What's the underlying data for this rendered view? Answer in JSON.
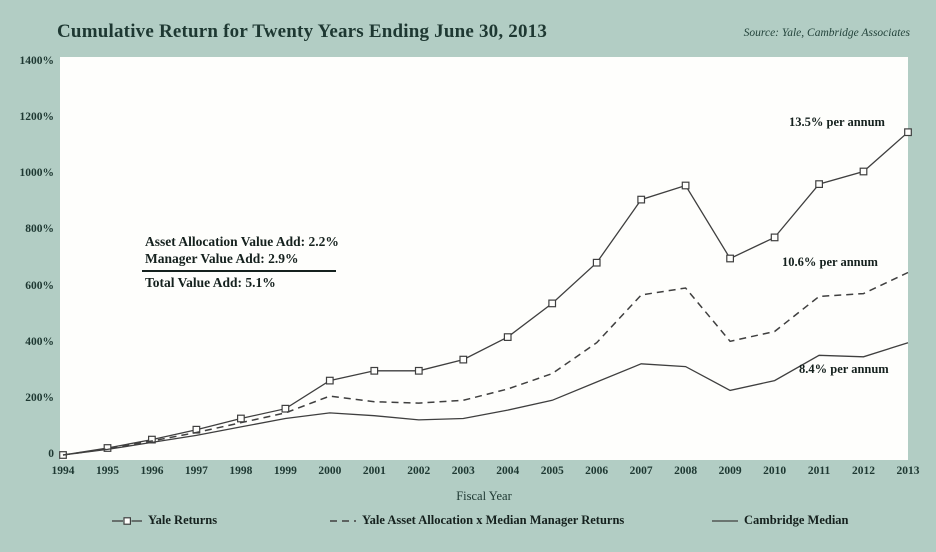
{
  "title": "Cumulative Return for Twenty Years Ending June 30, 2013",
  "source": "Source: Yale, Cambridge Associates",
  "annotation": {
    "line1": "Asset Allocation Value Add: 2.2%",
    "line2": "Manager Value Add: 2.9%",
    "line3": "Total Value Add: 5.1%"
  },
  "colors": {
    "background": "#b2cdc4",
    "plot_background": "#fefefc",
    "line": "#3f3f3f",
    "text": "#1e3832"
  },
  "chart_data": {
    "type": "line",
    "title": "Cumulative Return for Twenty Years Ending June 30, 2013",
    "xlabel": "Fiscal Year",
    "ylabel": "",
    "x": [
      1994,
      1995,
      1996,
      1997,
      1998,
      1999,
      2000,
      2001,
      2002,
      2003,
      2004,
      2005,
      2006,
      2007,
      2008,
      2009,
      2010,
      2011,
      2012,
      2013
    ],
    "ylim": [
      0,
      1400
    ],
    "yticks": [
      0,
      200,
      400,
      600,
      800,
      1000,
      1200,
      1400
    ],
    "ytick_suffix": "%",
    "grid": false,
    "legend_position": "bottom",
    "series": [
      {
        "name": "Yale Returns",
        "style": "solid",
        "markers": "open-square",
        "per_annum_label": "13.5% per annum",
        "values": [
          0,
          25,
          55,
          90,
          130,
          165,
          265,
          300,
          300,
          340,
          420,
          540,
          685,
          910,
          960,
          700,
          775,
          965,
          1010,
          1150
        ]
      },
      {
        "name": "Yale Asset Allocation x Median Manager Returns",
        "style": "dashed",
        "markers": "none",
        "per_annum_label": "10.6% per annum",
        "values": [
          0,
          22,
          50,
          80,
          115,
          150,
          210,
          190,
          185,
          195,
          235,
          290,
          400,
          570,
          595,
          405,
          440,
          565,
          575,
          650
        ]
      },
      {
        "name": "Cambridge Median",
        "style": "solid",
        "markers": "none",
        "per_annum_label": "8.4% per annum",
        "values": [
          0,
          20,
          45,
          70,
          100,
          130,
          150,
          140,
          125,
          130,
          160,
          195,
          260,
          325,
          315,
          230,
          265,
          355,
          350,
          400
        ]
      }
    ]
  }
}
